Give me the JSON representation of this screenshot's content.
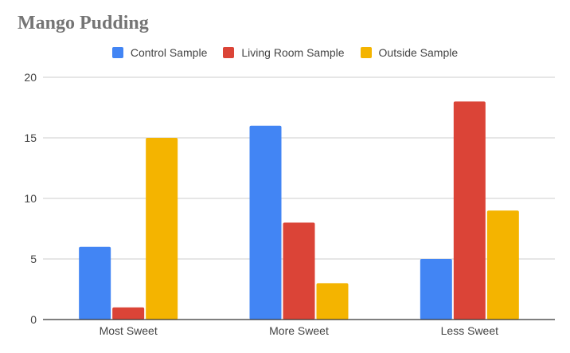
{
  "chart_data": {
    "type": "bar",
    "title": "Mango Pudding",
    "xlabel": "",
    "ylabel": "",
    "categories": [
      "Most Sweet",
      "More Sweet",
      "Less Sweet"
    ],
    "series": [
      {
        "name": "Control Sample",
        "color": "#4285f4",
        "values": [
          6,
          16,
          5
        ]
      },
      {
        "name": "Living Room Sample",
        "color": "#db4437",
        "values": [
          1,
          8,
          18
        ]
      },
      {
        "name": "Outside Sample",
        "color": "#f4b400",
        "values": [
          15,
          3,
          9
        ]
      }
    ],
    "ylim": [
      0,
      20
    ],
    "yticks": [
      0,
      5,
      10,
      15,
      20
    ],
    "grid": true,
    "legend_position": "top"
  }
}
